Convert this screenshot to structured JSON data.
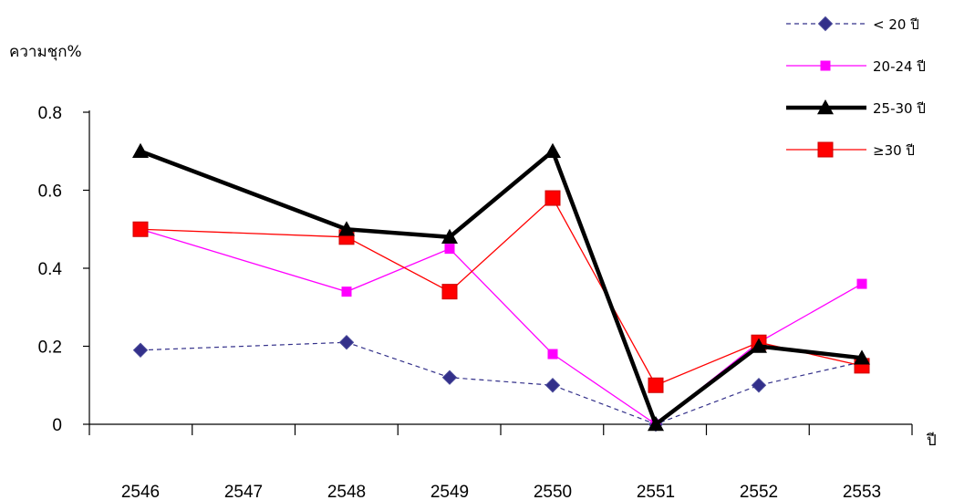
{
  "chart_data": {
    "type": "line",
    "ylabel": "ความชุก%",
    "xlabel": "ปี",
    "categories": [
      "2546",
      "2547",
      "2548",
      "2549",
      "2550",
      "2551",
      "2552",
      "2553"
    ],
    "ylim": [
      0,
      0.8
    ],
    "yticks": [
      "0",
      "0.2",
      "0.4",
      "0.6",
      "0.8"
    ],
    "grid": false,
    "legend_position": "top-right",
    "series": [
      {
        "name": "< 20  ปี",
        "color": "#33308a",
        "marker": "diamond",
        "style": "dashed",
        "x": [
          "2546",
          "2548",
          "2549",
          "2550",
          "2551",
          "2552",
          "2553"
        ],
        "values": [
          0.19,
          0.21,
          0.12,
          0.1,
          0.0,
          0.1,
          0.16
        ]
      },
      {
        "name": "20-24 ปี",
        "color": "#ff00ff",
        "marker": "square",
        "style": "solid",
        "x": [
          "2546",
          "2548",
          "2549",
          "2550",
          "2551",
          "2552",
          "2553"
        ],
        "values": [
          0.5,
          0.34,
          0.45,
          0.18,
          0.0,
          0.21,
          0.36
        ]
      },
      {
        "name": "25-30 ปี",
        "color": "#000000",
        "marker": "triangle",
        "style": "bold",
        "x": [
          "2546",
          "2548",
          "2549",
          "2550",
          "2551",
          "2552",
          "2553"
        ],
        "values": [
          0.7,
          0.5,
          0.48,
          0.7,
          0.0,
          0.2,
          0.17
        ]
      },
      {
        "name": "≥30 ปี",
        "color": "#ff0000",
        "marker": "square-large",
        "style": "solid",
        "x": [
          "2546",
          "2548",
          "2549",
          "2550",
          "2551",
          "2552",
          "2553"
        ],
        "values": [
          0.5,
          0.48,
          0.34,
          0.58,
          0.1,
          0.21,
          0.15
        ]
      }
    ]
  }
}
